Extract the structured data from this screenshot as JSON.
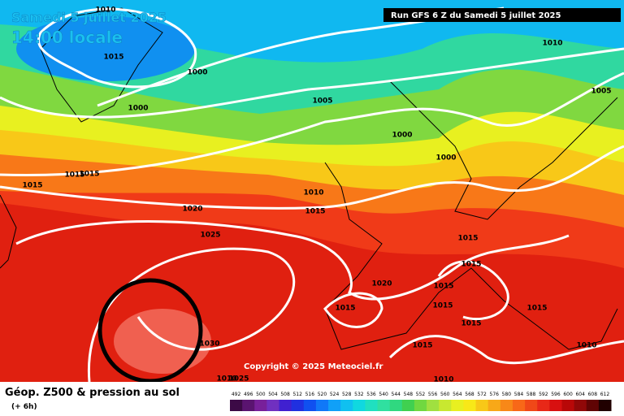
{
  "header": {
    "date": "Samedi 5 juillet 2025",
    "time": "14:00 locale",
    "run": "Run GFS 6 Z du Samedi 5 juillet 2025",
    "copyright": "Copyright © 2025 Meteociel.fr"
  },
  "legend": {
    "title": "Géop. Z500 & pression au sol",
    "subtitle": "(+ 6h)",
    "levels": [
      492,
      496,
      500,
      504,
      508,
      512,
      516,
      520,
      524,
      528,
      532,
      536,
      540,
      544,
      548,
      552,
      556,
      560,
      564,
      568,
      572,
      576,
      580,
      584,
      588,
      592,
      596,
      600,
      604,
      608,
      612
    ],
    "colors": [
      "#3c0a46",
      "#5a1470",
      "#78209a",
      "#7030c0",
      "#4020d0",
      "#2030e0",
      "#1050f0",
      "#1078f8",
      "#10a0f8",
      "#10c0f0",
      "#10d8e0",
      "#20e0c0",
      "#30e0a0",
      "#30d880",
      "#40d050",
      "#70d840",
      "#a0e040",
      "#c8e830",
      "#e8f020",
      "#f8e818",
      "#f8c818",
      "#f8a818",
      "#f88818",
      "#f86818",
      "#f04818",
      "#e82818",
      "#d81010",
      "#b80808",
      "#900808",
      "#600404",
      "#200000"
    ]
  },
  "isobar_labels": [
    "1010",
    "1015",
    "1000",
    "1000",
    "1005",
    "1010",
    "1005",
    "1000",
    "1000",
    "1015",
    "1015",
    "1015",
    "1020",
    "1010",
    "1015",
    "1025",
    "1015",
    "1015",
    "1020",
    "1015",
    "1015",
    "1015",
    "1015",
    "1015",
    "1030",
    "1015",
    "1010",
    "1010",
    "1025",
    "1010"
  ]
}
